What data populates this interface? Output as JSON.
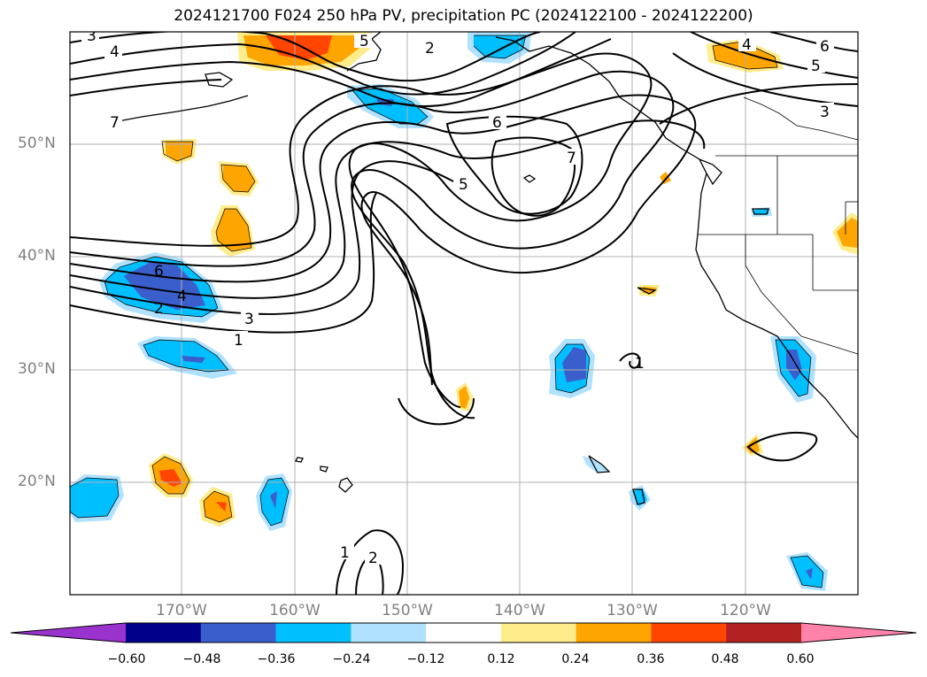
{
  "title": "2024121700 F024 250 hPa PV, precipitation PC (2024122100 - 2024122200)",
  "lat_labels": [
    "50°N",
    "40°N",
    "30°N",
    "20°N"
  ],
  "lon_labels": [
    "170°W",
    "160°W",
    "150°W",
    "140°W",
    "130°W",
    "120°W"
  ],
  "colorbar": {
    "ticks": [
      "−0.60",
      "−0.48",
      "−0.36",
      "−0.24",
      "−0.12",
      "0.12",
      "0.24",
      "0.36",
      "0.48",
      "0.60"
    ],
    "colors": [
      "#9a32cd",
      "#00008b",
      "#3a5fcd",
      "#00bfff",
      "#b0e2ff",
      "#ffffff",
      "#ffec8b",
      "#ffa500",
      "#ff4500",
      "#b22222",
      "#ff82ab"
    ]
  },
  "contour_labels": [
    "3",
    "4",
    "2",
    "5",
    "6",
    "4",
    "5",
    "3",
    "7",
    "6",
    "7",
    "5",
    "6",
    "4",
    "2",
    "3",
    "1",
    "1",
    "1",
    "2"
  ]
}
